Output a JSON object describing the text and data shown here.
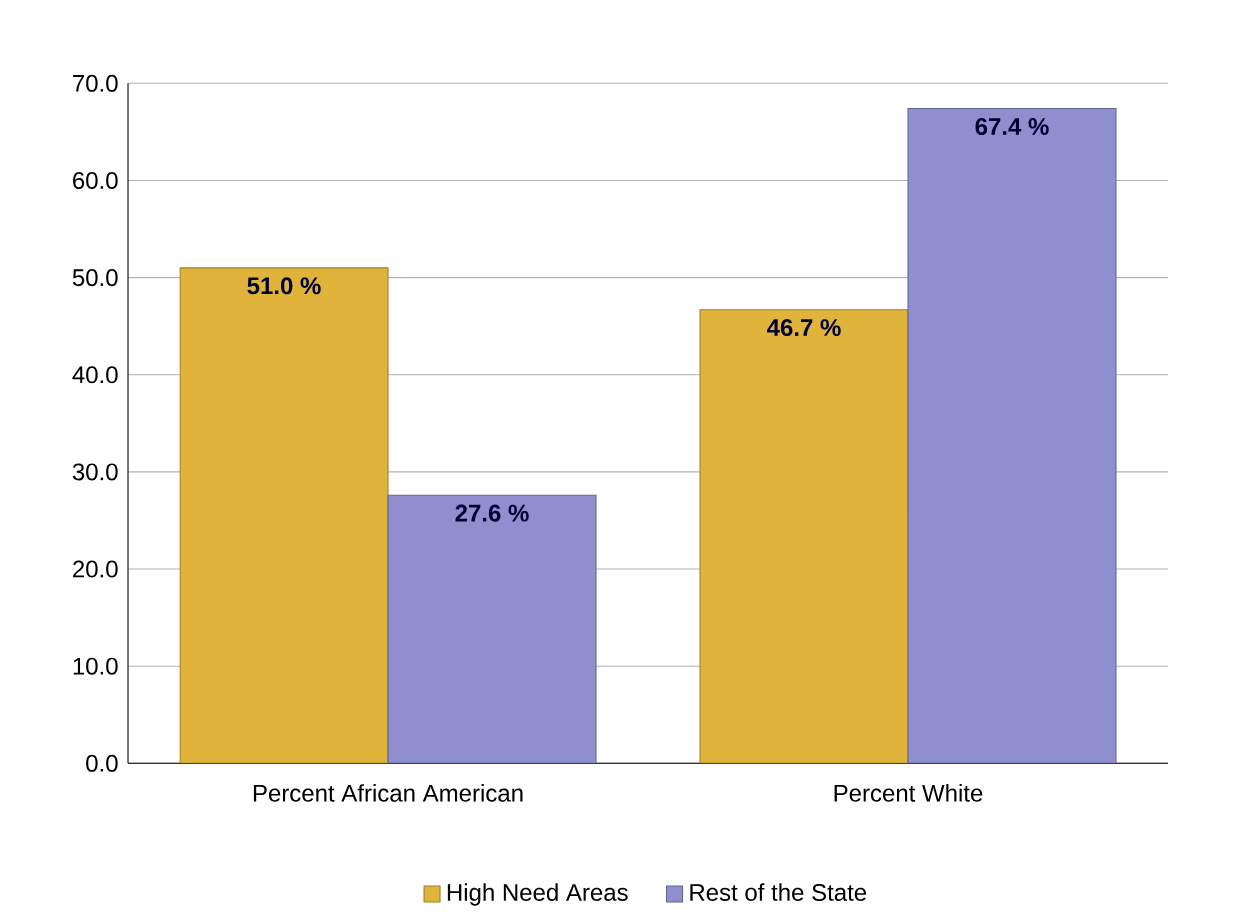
{
  "chart_data": {
    "type": "bar",
    "categories": [
      "Percent African American",
      "Percent White"
    ],
    "series": [
      {
        "name": "High Need Areas",
        "color": "#e0b43a",
        "values": [
          51.0,
          46.7
        ],
        "value_labels": [
          "51.0 %",
          "46.7 %"
        ]
      },
      {
        "name": "Rest of the State",
        "color": "#8f8fd0",
        "values": [
          27.6,
          67.4
        ],
        "value_labels": [
          "27.6 %",
          "67.4 %"
        ]
      }
    ],
    "ylim": [
      0,
      70
    ],
    "yticks": [
      {
        "value": 0,
        "label": "0.0"
      },
      {
        "value": 10,
        "label": "10.0"
      },
      {
        "value": 20,
        "label": "20.0"
      },
      {
        "value": 30,
        "label": "30.0"
      },
      {
        "value": 40,
        "label": "40.0"
      },
      {
        "value": 50,
        "label": "50.0"
      },
      {
        "value": 60,
        "label": "60.0"
      },
      {
        "value": 70,
        "label": "70.0"
      }
    ],
    "grid": "y",
    "legend": "bottom"
  }
}
